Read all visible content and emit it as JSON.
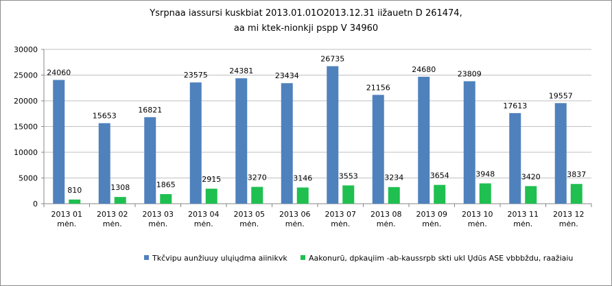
{
  "chart_data": {
    "type": "bar",
    "title_lines": [
      "Ysrpnaa  iassursi kuskbiat 2013.01.01O2013.12.31 iižauetn D 261474,",
      "aa mi ktek-nionkji pspp V 34960"
    ],
    "categories": [
      [
        "2013 01",
        "mėn."
      ],
      [
        "2013 02",
        "mėn."
      ],
      [
        "2013 03",
        "mėn."
      ],
      [
        "2013 04",
        "mėn."
      ],
      [
        "2013 05",
        "mėn."
      ],
      [
        "2013 06",
        "mėn."
      ],
      [
        "2013 07",
        "mėn."
      ],
      [
        "2013 08",
        "mėn."
      ],
      [
        "2013 09",
        "mėn."
      ],
      [
        "2013 10",
        "mėn."
      ],
      [
        "2013 11",
        "mėn."
      ],
      [
        "2013 12",
        "mėn."
      ]
    ],
    "series": [
      {
        "name": "Tkčvipu aunžiuuy ulųiųdma aiinikvk",
        "color": "#4f81bd",
        "values": [
          24060,
          15653,
          16821,
          23575,
          24381,
          23434,
          26735,
          21156,
          24680,
          23809,
          17613,
          19557
        ]
      },
      {
        "name": "Aakonurū, dpkaųiim -ab-kaussrpb skti ukl Ųdūs ASE vbbbždu, raažiaiu",
        "color": "#1fbf50",
        "values": [
          810,
          1308,
          1865,
          2915,
          3270,
          3146,
          3553,
          3234,
          3654,
          3948,
          3420,
          3837
        ]
      }
    ],
    "ylim": [
      0,
      30000
    ],
    "yticks": [
      0,
      5000,
      10000,
      15000,
      20000,
      25000,
      30000
    ],
    "legend_position": "bottom"
  }
}
